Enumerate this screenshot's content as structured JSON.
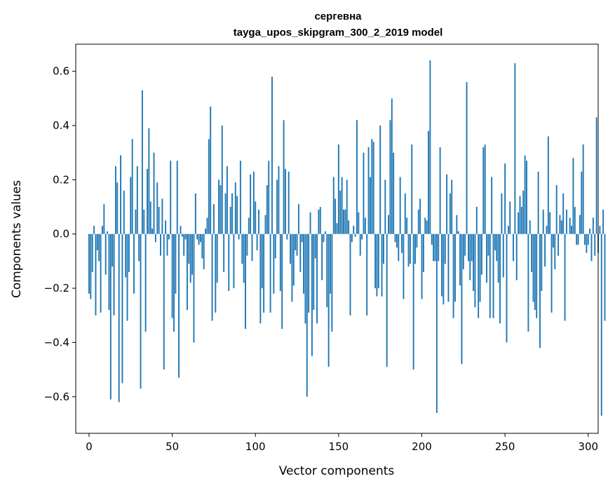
{
  "chart_data": {
    "type": "bar",
    "title": "сергевна",
    "subtitle": "tayga_upos_skipgram_300_2_2019 model",
    "xlabel": "Vector components",
    "ylabel": "Components values",
    "xlim": [
      -8,
      306
    ],
    "ylim": [
      -0.735,
      0.7
    ],
    "xticks": [
      0,
      50,
      100,
      150,
      200,
      250,
      300
    ],
    "yticks": [
      0.6,
      0.4,
      0.2,
      0.0,
      -0.2,
      -0.4,
      -0.6
    ],
    "ytick_labels": [
      "0.6",
      "0.4",
      "0.2",
      "0.0",
      "−0.2",
      "−0.4",
      "−0.6"
    ],
    "bar_color": "#1f77b4",
    "values": [
      -0.22,
      -0.24,
      -0.14,
      0.03,
      -0.3,
      -0.06,
      -0.1,
      -0.29,
      0.03,
      0.11,
      -0.15,
      0.01,
      -0.28,
      -0.61,
      -0.12,
      -0.3,
      0.25,
      0.19,
      -0.62,
      0.29,
      -0.55,
      0.16,
      -0.16,
      -0.32,
      -0.14,
      0.21,
      0.35,
      -0.22,
      0.09,
      0.25,
      -0.1,
      -0.57,
      0.53,
      0.09,
      -0.36,
      0.24,
      0.39,
      0.12,
      0.02,
      0.3,
      -0.03,
      0.19,
      0.1,
      -0.08,
      0.13,
      -0.5,
      0.05,
      -0.08,
      -0.02,
      0.27,
      -0.31,
      -0.36,
      -0.22,
      0.27,
      -0.53,
      0.03,
      -0.01,
      -0.08,
      -0.02,
      -0.28,
      -0.11,
      -0.18,
      -0.15,
      -0.4,
      0.15,
      -0.02,
      -0.04,
      -0.03,
      -0.09,
      -0.13,
      0.02,
      0.06,
      0.35,
      0.47,
      -0.32,
      0.11,
      -0.29,
      -0.18,
      0.2,
      0.18,
      0.4,
      -0.14,
      0.15,
      0.25,
      -0.21,
      0.1,
      0.15,
      -0.2,
      0.19,
      0.14,
      -0.02,
      0.27,
      -0.11,
      -0.18,
      -0.35,
      -0.08,
      0.06,
      0.22,
      -0.1,
      0.23,
      0.12,
      -0.06,
      0.09,
      -0.33,
      -0.2,
      -0.29,
      0.07,
      0.18,
      0.27,
      -0.29,
      0.58,
      -0.22,
      -0.09,
      0.2,
      0.25,
      -0.21,
      -0.35,
      0.42,
      0.24,
      -0.02,
      0.23,
      -0.11,
      -0.25,
      -0.19,
      -0.06,
      -0.08,
      0.11,
      -0.14,
      -0.03,
      -0.22,
      -0.33,
      -0.6,
      -0.29,
      0.08,
      -0.45,
      -0.28,
      -0.09,
      -0.33,
      0.09,
      0.1,
      -0.17,
      -0.03,
      0.01,
      -0.27,
      -0.49,
      -0.22,
      -0.36,
      0.21,
      0.13,
      0.04,
      0.33,
      0.16,
      0.21,
      0.09,
      0.09,
      0.2,
      0.05,
      -0.3,
      -0.03,
      0.03,
      -0.01,
      0.42,
      0.08,
      -0.08,
      -0.02,
      0.3,
      0.06,
      -0.3,
      0.32,
      0.21,
      0.35,
      0.34,
      -0.2,
      -0.23,
      -0.2,
      0.4,
      -0.23,
      -0.11,
      0.2,
      -0.49,
      0.07,
      0.42,
      0.5,
      0.3,
      -0.03,
      -0.05,
      -0.1,
      0.21,
      -0.07,
      -0.24,
      0.15,
      0.06,
      -0.12,
      -0.11,
      0.33,
      -0.5,
      -0.11,
      -0.05,
      0.09,
      0.13,
      -0.24,
      -0.14,
      0.06,
      0.05,
      0.38,
      0.64,
      -0.04,
      -0.1,
      -0.1,
      -0.66,
      -0.1,
      0.32,
      -0.23,
      -0.26,
      -0.11,
      0.22,
      -0.25,
      0.15,
      0.2,
      -0.31,
      -0.25,
      0.07,
      0.01,
      -0.19,
      -0.48,
      -0.13,
      -0.08,
      0.56,
      -0.1,
      -0.17,
      -0.1,
      -0.21,
      -0.27,
      0.1,
      -0.31,
      -0.25,
      -0.15,
      0.32,
      0.33,
      -0.18,
      -0.08,
      -0.31,
      0.21,
      -0.31,
      -0.06,
      -0.1,
      -0.18,
      -0.33,
      0.15,
      -0.16,
      0.26,
      -0.4,
      0.03,
      0.12,
      0.0,
      -0.1,
      0.63,
      -0.17,
      0.08,
      0.14,
      0.1,
      0.16,
      0.29,
      0.27,
      -0.36,
      0.05,
      -0.14,
      -0.25,
      -0.28,
      -0.31,
      0.23,
      -0.42,
      -0.21,
      0.09,
      -0.12,
      0.03,
      0.36,
      0.08,
      -0.29,
      -0.05,
      -0.13,
      0.18,
      -0.08,
      0.07,
      0.05,
      0.15,
      -0.32,
      0.09,
      0.0,
      0.06,
      0.03,
      0.28,
      0.1,
      -0.04,
      -0.04,
      0.07,
      0.23,
      0.33,
      -0.04,
      -0.07,
      -0.04,
      0.02,
      -0.1,
      0.06,
      -0.08,
      0.43,
      -0.07,
      0.03,
      -0.67,
      0.09,
      -0.32
    ]
  }
}
